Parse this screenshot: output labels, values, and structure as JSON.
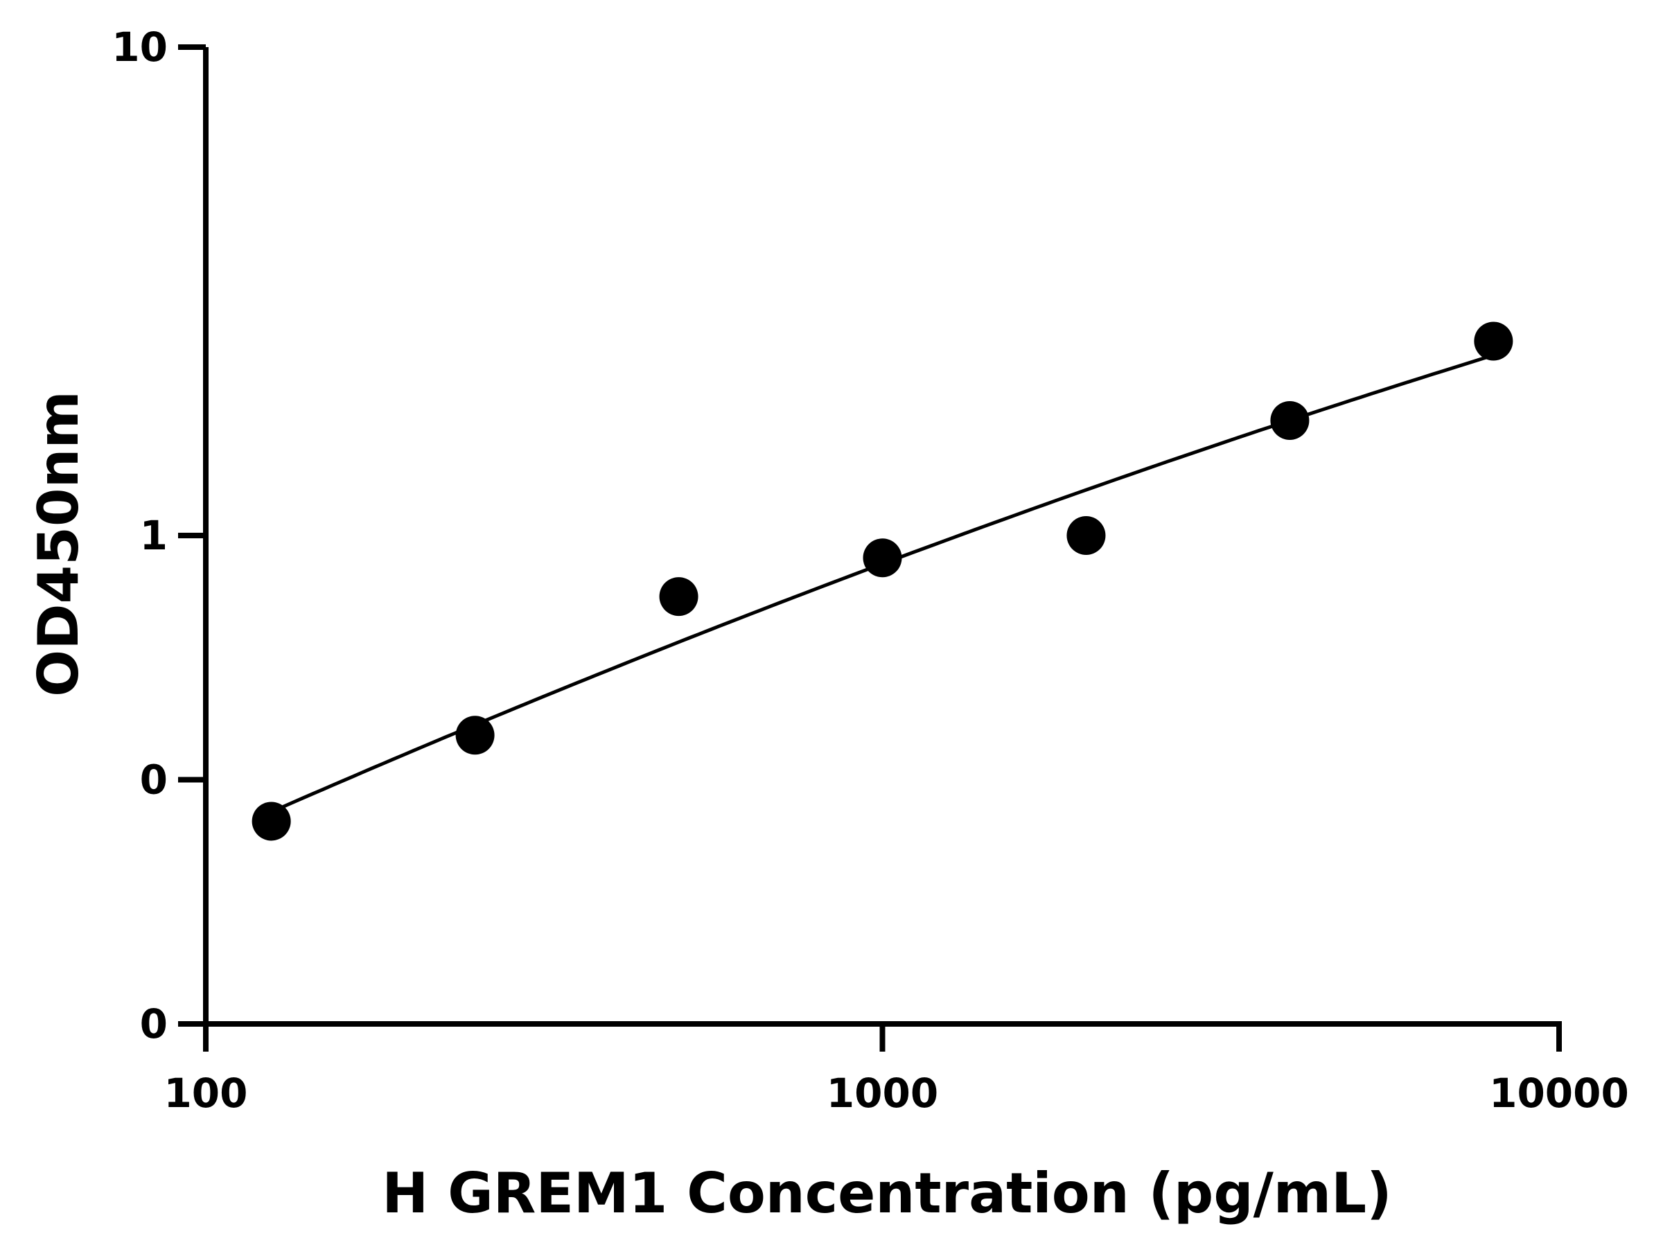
{
  "chart_data": {
    "type": "scatter",
    "xlabel": "H GREM1 Concentration (pg/mL)",
    "ylabel": "OD450nm",
    "x_scale": "log",
    "xlim": [
      100,
      10000
    ],
    "x_ticks": [
      {
        "value": 100,
        "label": "100"
      },
      {
        "value": 1000,
        "label": "1000"
      },
      {
        "value": 10000,
        "label": "10000"
      }
    ],
    "y_scale": "log",
    "ylim": [
      0.1,
      10
    ],
    "y_ticks": [
      {
        "value": 0.1,
        "label": "0"
      },
      {
        "value": 0.3162,
        "label": "0"
      },
      {
        "value": 1,
        "label": "1"
      },
      {
        "value": 10,
        "label": "10"
      }
    ],
    "grid": false,
    "series": [
      {
        "points": [
          {
            "x": 125,
            "y": 0.26
          },
          {
            "x": 250,
            "y": 0.39
          },
          {
            "x": 500,
            "y": 0.75
          },
          {
            "x": 1000,
            "y": 0.9
          },
          {
            "x": 2000,
            "y": 1.0
          },
          {
            "x": 4000,
            "y": 1.72
          },
          {
            "x": 8000,
            "y": 2.5
          }
        ],
        "fit_curve": true,
        "color": "#000000"
      }
    ]
  }
}
